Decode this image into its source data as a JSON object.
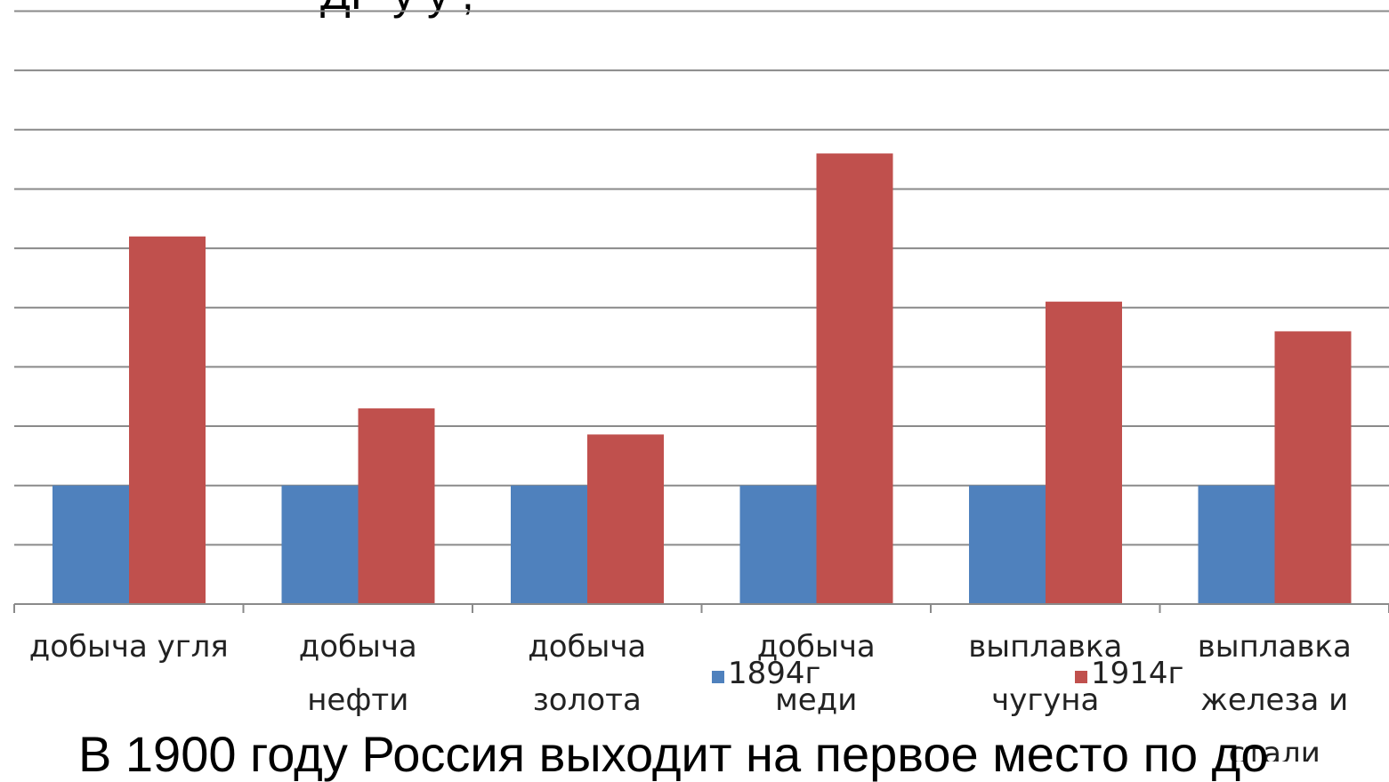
{
  "chart_data": {
    "type": "bar",
    "categories": [
      [
        "добыча угля"
      ],
      [
        "добыча",
        "нефти"
      ],
      [
        "добыча",
        "золота"
      ],
      [
        "добыча",
        "меди"
      ],
      [
        "выплавка",
        "чугуна"
      ],
      [
        "выплавка",
        "железа и",
        "стали"
      ]
    ],
    "series": [
      {
        "name": "1894г",
        "values": [
          1,
          1,
          1,
          1,
          1,
          1
        ],
        "color": "#4F81BD"
      },
      {
        "name": "1914г",
        "values": [
          3.1,
          1.65,
          1.43,
          3.8,
          2.55,
          2.3
        ],
        "color": "#C0504D"
      }
    ],
    "ylim": [
      0,
      5
    ],
    "grid": true,
    "legend": "bottom"
  },
  "caption": "В 1900 году Россия выходит на первое место по до",
  "title_fragment": "ДР         у у ,"
}
